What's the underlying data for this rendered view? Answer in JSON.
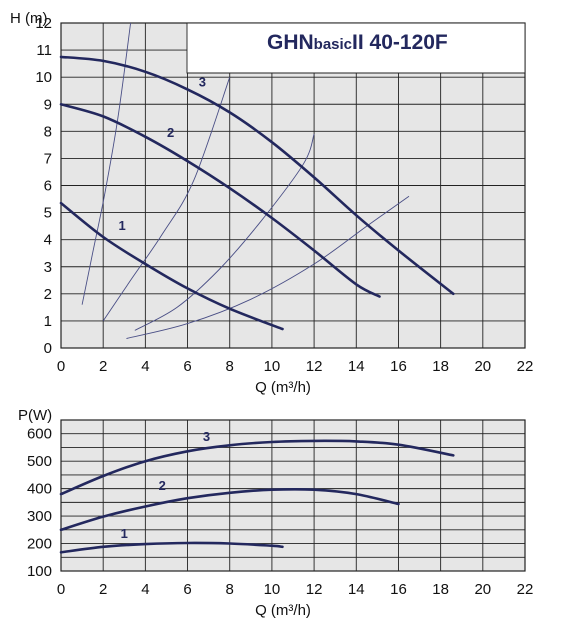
{
  "colors": {
    "curve": "#23285e",
    "system_curve": "#4a4f86",
    "plot_bg": "#e6e6e6",
    "grid": "#222222"
  },
  "chart_data": [
    {
      "type": "line",
      "title": "",
      "title_parts": {
        "main": "GHN",
        "basic": "basic",
        "model": "II  40-120F"
      },
      "xlabel": "Q (m³/h)",
      "ylabel": "H (m)",
      "xlim": [
        0,
        22
      ],
      "ylim": [
        0,
        12
      ],
      "x_ticks": [
        "0",
        "2",
        "4",
        "6",
        "8",
        "10",
        "12",
        "14",
        "16",
        "18",
        "20",
        "22"
      ],
      "y_ticks": [
        "0",
        "1",
        "2",
        "3",
        "4",
        "5",
        "6",
        "7",
        "8",
        "9",
        "10",
        "11",
        "12"
      ],
      "grid": true,
      "series": [
        {
          "name": "1",
          "label_pos": [
            2.9,
            4.35
          ],
          "points": [
            [
              0,
              5.35
            ],
            [
              2,
              4.1
            ],
            [
              4,
              3.1
            ],
            [
              6,
              2.2
            ],
            [
              8,
              1.45
            ],
            [
              10.5,
              0.7
            ]
          ]
        },
        {
          "name": "2",
          "label_pos": [
            5.2,
            7.8
          ],
          "points": [
            [
              0,
              9.0
            ],
            [
              2,
              8.55
            ],
            [
              4,
              7.8
            ],
            [
              6,
              6.9
            ],
            [
              8,
              5.9
            ],
            [
              10,
              4.8
            ],
            [
              12,
              3.6
            ],
            [
              14,
              2.35
            ],
            [
              15.1,
              1.9
            ]
          ]
        },
        {
          "name": "3",
          "label_pos": [
            6.7,
            9.65
          ],
          "points": [
            [
              0,
              10.75
            ],
            [
              2,
              10.6
            ],
            [
              4,
              10.2
            ],
            [
              6,
              9.55
            ],
            [
              8,
              8.7
            ],
            [
              10,
              7.6
            ],
            [
              12,
              6.3
            ],
            [
              14,
              4.9
            ],
            [
              16,
              3.6
            ],
            [
              18.6,
              2.0
            ]
          ]
        }
      ],
      "system_curves": [
        {
          "points": [
            [
              1.0,
              1.6
            ],
            [
              1.5,
              3.5
            ],
            [
              2.1,
              5.8
            ],
            [
              2.7,
              8.5
            ],
            [
              3.3,
              12.0
            ]
          ]
        },
        {
          "points": [
            [
              2.0,
              1.0
            ],
            [
              3.3,
              2.5
            ],
            [
              4.8,
              4.2
            ],
            [
              6.3,
              6.2
            ],
            [
              8.0,
              10.0
            ]
          ]
        },
        {
          "points": [
            [
              3.5,
              0.65
            ],
            [
              5.5,
              1.5
            ],
            [
              7.5,
              2.9
            ],
            [
              9.5,
              4.7
            ],
            [
              11.5,
              6.8
            ],
            [
              12.0,
              7.9
            ]
          ]
        },
        {
          "points": [
            [
              3.1,
              0.35
            ],
            [
              6.0,
              0.9
            ],
            [
              9.0,
              1.8
            ],
            [
              12.0,
              3.1
            ],
            [
              14.5,
              4.5
            ],
            [
              16.5,
              5.6
            ]
          ]
        }
      ]
    },
    {
      "type": "line",
      "title": "",
      "xlabel": "Q (m³/h)",
      "ylabel": "P(W)",
      "xlim": [
        0,
        22
      ],
      "ylim": [
        100,
        650
      ],
      "x_ticks": [
        "0",
        "2",
        "4",
        "6",
        "8",
        "10",
        "12",
        "14",
        "16",
        "18",
        "20",
        "22"
      ],
      "y_ticks": [
        "100",
        "200",
        "300",
        "400",
        "500",
        "600"
      ],
      "grid": true,
      "series": [
        {
          "name": "1",
          "label_pos": [
            3.0,
            221
          ],
          "points": [
            [
              0,
              168
            ],
            [
              2,
              188
            ],
            [
              4,
              198
            ],
            [
              6,
              202
            ],
            [
              8,
              200
            ],
            [
              10,
              192
            ],
            [
              10.5,
              188
            ]
          ]
        },
        {
          "name": "2",
          "label_pos": [
            4.8,
            395
          ],
          "points": [
            [
              0,
              250
            ],
            [
              2,
              298
            ],
            [
              4,
              335
            ],
            [
              6,
              365
            ],
            [
              8,
              385
            ],
            [
              10,
              396
            ],
            [
              12,
              396
            ],
            [
              14,
              380
            ],
            [
              16,
              344
            ]
          ]
        },
        {
          "name": "3",
          "label_pos": [
            6.9,
            573
          ],
          "points": [
            [
              0,
              380
            ],
            [
              2,
              446
            ],
            [
              4,
              500
            ],
            [
              6,
              536
            ],
            [
              8,
              558
            ],
            [
              10,
              570
            ],
            [
              12,
              574
            ],
            [
              14,
              572
            ],
            [
              16,
              560
            ],
            [
              18.6,
              521
            ]
          ]
        }
      ]
    }
  ]
}
